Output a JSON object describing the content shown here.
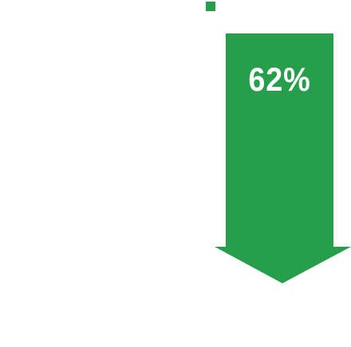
{
  "callout": {
    "value_label": "62%",
    "value_percent": 62,
    "direction": "down",
    "arrow_icon": "down-arrow-shape",
    "marker_icon": "square-marker-icon"
  },
  "colors": {
    "accent": "#279e4b",
    "text": "#ffffff",
    "background": "#ffffff"
  }
}
